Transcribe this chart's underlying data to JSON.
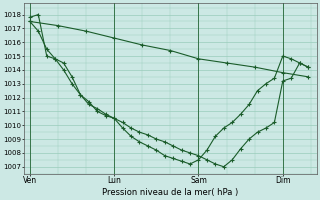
{
  "xlabel": "Pression niveau de la mer( hPa )",
  "bg_color": "#cce8e4",
  "grid_color": "#99ccbb",
  "line_color": "#1a5c2a",
  "ylim": [
    1006.5,
    1018.8
  ],
  "yticks": [
    1007,
    1008,
    1009,
    1010,
    1011,
    1012,
    1013,
    1014,
    1015,
    1016,
    1017,
    1018
  ],
  "xtick_labels": [
    "Ven",
    "Lun",
    "Sam",
    "Dim"
  ],
  "xtick_positions": [
    0,
    30,
    60,
    90
  ],
  "xlim": [
    -2,
    102
  ],
  "vline_positions": [
    0,
    30,
    60,
    90
  ],
  "line1_x": [
    0,
    3,
    6,
    9,
    12,
    15,
    18,
    21,
    24,
    27,
    30,
    33,
    36,
    39,
    42,
    45,
    48,
    51,
    54,
    57,
    60,
    63,
    66,
    69,
    72,
    75,
    78,
    81,
    84,
    87,
    90,
    93,
    96,
    99
  ],
  "line1_y": [
    1017.8,
    1018.0,
    1015.0,
    1014.8,
    1014.5,
    1013.5,
    1012.2,
    1011.7,
    1011.0,
    1010.7,
    1010.5,
    1010.2,
    1009.8,
    1009.5,
    1009.3,
    1009.0,
    1008.8,
    1008.5,
    1008.2,
    1008.0,
    1007.8,
    1007.5,
    1007.2,
    1007.0,
    1007.5,
    1008.3,
    1009.0,
    1009.5,
    1009.8,
    1010.2,
    1013.2,
    1013.4,
    1014.5,
    1014.2
  ],
  "line2_x": [
    0,
    3,
    6,
    9,
    12,
    15,
    18,
    21,
    24,
    27,
    30,
    33,
    36,
    39,
    42,
    45,
    48,
    51,
    54,
    57,
    60,
    63,
    66,
    69,
    72,
    75,
    78,
    81,
    84,
    87,
    90,
    93,
    96,
    99
  ],
  "line2_y": [
    1017.5,
    1016.8,
    1015.5,
    1014.8,
    1014.0,
    1013.0,
    1012.2,
    1011.5,
    1011.2,
    1010.8,
    1010.5,
    1009.8,
    1009.2,
    1008.8,
    1008.5,
    1008.2,
    1007.8,
    1007.6,
    1007.4,
    1007.2,
    1007.5,
    1008.2,
    1009.2,
    1009.8,
    1010.2,
    1010.8,
    1011.5,
    1012.5,
    1013.0,
    1013.4,
    1015.0,
    1014.8,
    1014.5,
    1014.2
  ],
  "line3_x": [
    0,
    10,
    20,
    30,
    40,
    50,
    60,
    70,
    80,
    90,
    99
  ],
  "line3_y": [
    1017.5,
    1017.2,
    1016.8,
    1016.3,
    1015.8,
    1015.4,
    1014.8,
    1014.5,
    1014.2,
    1013.8,
    1013.5
  ],
  "marker": "+"
}
